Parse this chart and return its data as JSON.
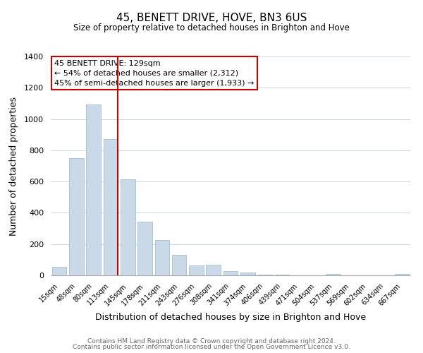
{
  "title": "45, BENETT DRIVE, HOVE, BN3 6US",
  "subtitle": "Size of property relative to detached houses in Brighton and Hove",
  "xlabel": "Distribution of detached houses by size in Brighton and Hove",
  "ylabel": "Number of detached properties",
  "bar_labels": [
    "15sqm",
    "48sqm",
    "80sqm",
    "113sqm",
    "145sqm",
    "178sqm",
    "211sqm",
    "243sqm",
    "276sqm",
    "308sqm",
    "341sqm",
    "374sqm",
    "406sqm",
    "439sqm",
    "471sqm",
    "504sqm",
    "537sqm",
    "569sqm",
    "602sqm",
    "634sqm",
    "667sqm"
  ],
  "bar_values": [
    55,
    750,
    1095,
    870,
    615,
    345,
    228,
    130,
    65,
    70,
    25,
    20,
    5,
    5,
    0,
    0,
    10,
    0,
    0,
    0,
    10
  ],
  "bar_color": "#c9d9e8",
  "bar_edge_color": "#a8bfcf",
  "annotation_title": "45 BENETT DRIVE: 129sqm",
  "annotation_line1": "← 54% of detached houses are smaller (2,312)",
  "annotation_line2": "45% of semi-detached houses are larger (1,933) →",
  "annotation_box_color": "#ffffff",
  "annotation_box_edge": "#cc0000",
  "vline_color": "#cc0000",
  "ylim": [
    0,
    1400
  ],
  "yticks": [
    0,
    200,
    400,
    600,
    800,
    1000,
    1200,
    1400
  ],
  "footer1": "Contains HM Land Registry data © Crown copyright and database right 2024.",
  "footer2": "Contains public sector information licensed under the Open Government Licence v3.0.",
  "bg_color": "#ffffff",
  "grid_color": "#cdd9e5"
}
